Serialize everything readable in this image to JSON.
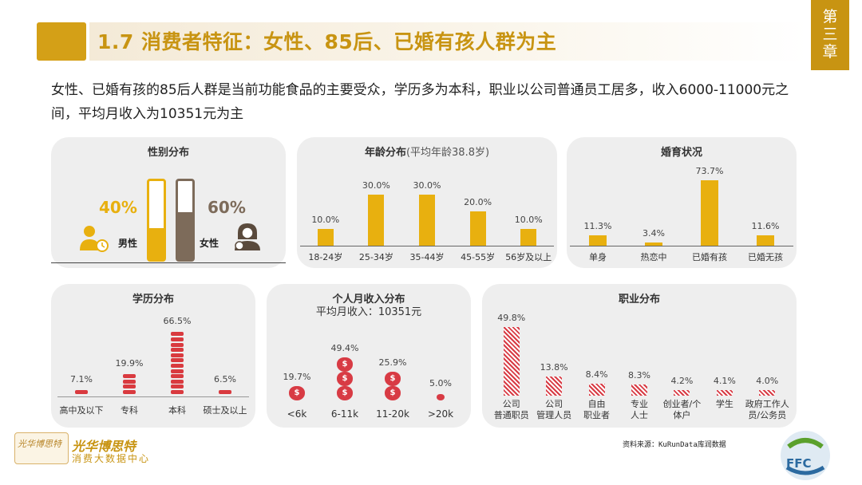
{
  "header": {
    "title": "1.7 消费者特征：女性、85后、已婚有孩人群为主",
    "chapter": [
      "第",
      "三",
      "章"
    ]
  },
  "intro": "女性、已婚有孩的85后人群是当前功能食品的主要受众，学历多为本科，职业以公司普通员工居多，收入6000-11000元之间，平均月收入为10351元为主",
  "gender": {
    "title": "性别分布",
    "male_pct": "40%",
    "male_label": "男性",
    "male_value": 40,
    "female_pct": "60%",
    "female_label": "女性",
    "female_value": 60,
    "colors": {
      "male": "#e8b00f",
      "female": "#7d6b5a"
    }
  },
  "age": {
    "title": "年龄分布",
    "subtitle": "(平均年龄38.8岁)",
    "categories": [
      "18-24岁",
      "25-34岁",
      "35-44岁",
      "45-55岁",
      "56岁及以上"
    ],
    "values": [
      10.0,
      30.0,
      30.0,
      20.0,
      10.0
    ],
    "labels": [
      "10.0%",
      "30.0%",
      "30.0%",
      "20.0%",
      "10.0%"
    ]
  },
  "marriage": {
    "title": "婚育状况",
    "categories": [
      "单身",
      "热恋中",
      "已婚有孩",
      "已婚无孩"
    ],
    "values": [
      11.3,
      3.4,
      73.7,
      11.6
    ],
    "labels": [
      "11.3%",
      "3.4%",
      "73.7%",
      "11.6%"
    ]
  },
  "education": {
    "title": "学历分布",
    "categories": [
      "高中及以下",
      "专科",
      "本科",
      "硕士及以上"
    ],
    "values": [
      7.1,
      19.9,
      66.5,
      6.5
    ],
    "labels": [
      "7.1%",
      "19.9%",
      "66.5%",
      "6.5%"
    ]
  },
  "income": {
    "title": "个人月收入分布",
    "avg_label": "平均月收入：10351元",
    "categories": [
      "<6k",
      "6-11k",
      "11-20k",
      ">20k"
    ],
    "values": [
      19.7,
      49.4,
      25.9,
      5.0
    ],
    "labels": [
      "19.7%",
      "49.4%",
      "25.9%",
      "5.0%"
    ]
  },
  "occupation": {
    "title": "职业分布",
    "categories": [
      [
        "公司",
        "普通职员"
      ],
      [
        "公司",
        "管理人员"
      ],
      [
        "自由",
        "职业者"
      ],
      [
        "专业",
        "人士"
      ],
      [
        "创业者/个",
        "体户"
      ],
      [
        "学生",
        ""
      ],
      [
        "政府工作人",
        "员/公务员"
      ]
    ],
    "values": [
      49.8,
      13.8,
      8.4,
      8.3,
      4.2,
      4.1,
      4.0
    ],
    "labels": [
      "49.8%",
      "13.8%",
      "8.4%",
      "8.3%",
      "4.2%",
      "4.1%",
      "4.0%"
    ]
  },
  "footer": {
    "source": "资料来源：KuRunData库润数据",
    "logo_name": "光华博思特",
    "logo_sub": "消费大数据中心",
    "badge_text": "光华博思特",
    "ffc": "FFC"
  },
  "colors": {
    "accent": "#c89412",
    "bar": "#e8b00f",
    "red": "#d83b44"
  }
}
